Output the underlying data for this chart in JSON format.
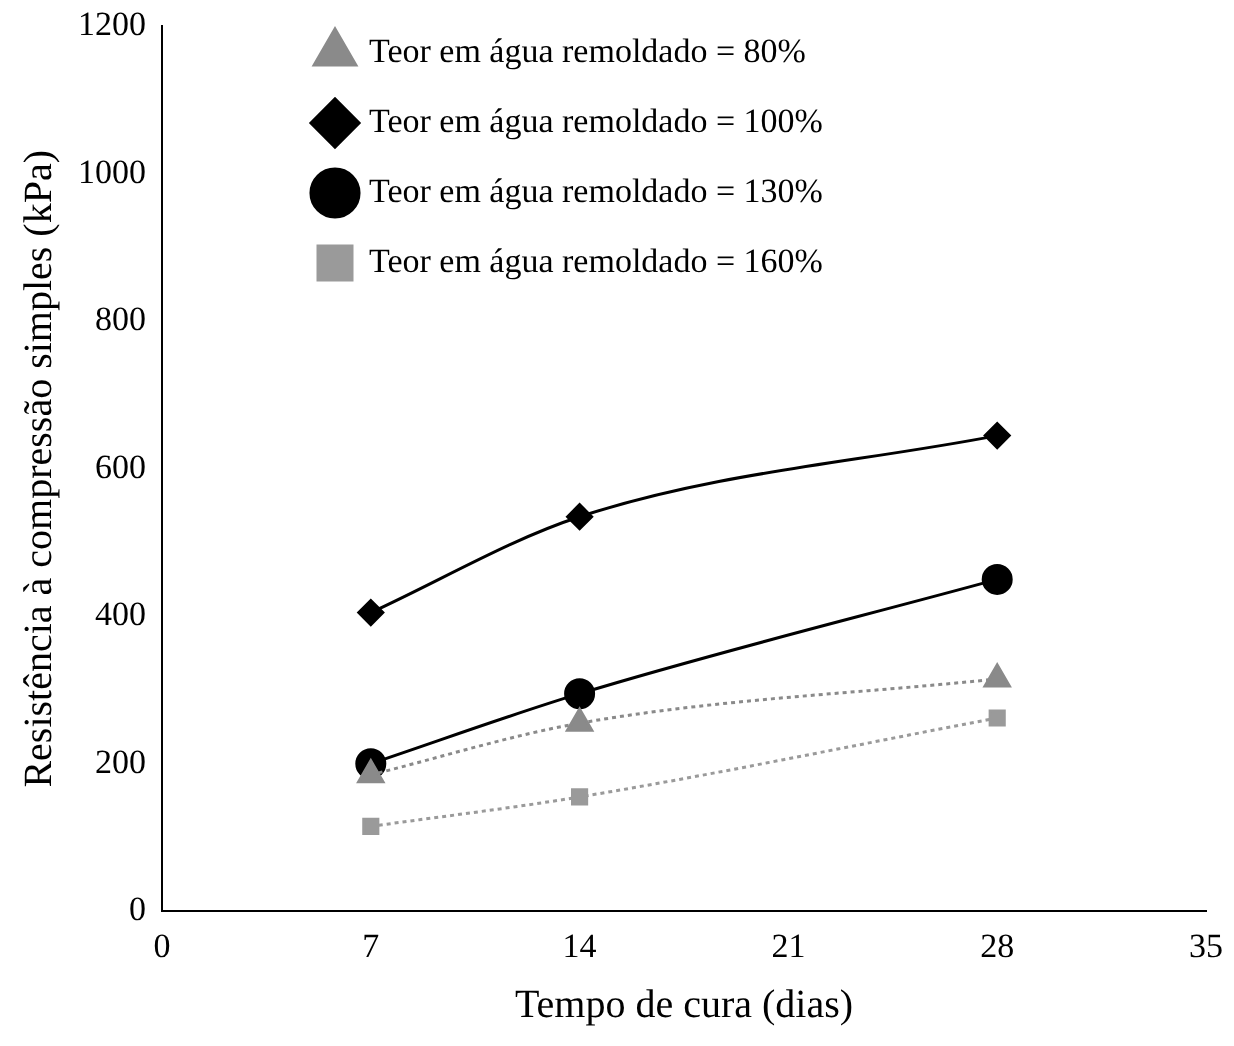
{
  "chart_data": {
    "type": "line",
    "xlabel": "Tempo de cura (dias)",
    "ylabel": "Resistência à compressão simples (kPa)",
    "x": [
      7,
      14,
      28
    ],
    "series": [
      {
        "name": "Teor em água remoldado = 80%",
        "color": "#8a8a8a",
        "values": [
          185,
          255,
          315
        ],
        "marker": "triangle",
        "line_style": "dotted"
      },
      {
        "name": "Teor em água remoldado = 100%",
        "color": "#000000",
        "values": [
          405,
          535,
          645
        ],
        "marker": "diamond",
        "line_style": "solid"
      },
      {
        "name": "Teor em água remoldado = 130%",
        "color": "#000000",
        "values": [
          200,
          295,
          450
        ],
        "marker": "circle",
        "line_style": "solid"
      },
      {
        "name": "Teor em água remoldado = 160%",
        "color": "#9a9a9a",
        "values": [
          115,
          155,
          262
        ],
        "marker": "square",
        "line_style": "dotted"
      }
    ],
    "xlim": [
      0,
      35
    ],
    "xticks": [
      0,
      7,
      14,
      21,
      28,
      35
    ],
    "ylim": [
      0,
      1200
    ],
    "yticks": [
      0,
      200,
      400,
      600,
      800,
      1000,
      1200
    ],
    "grid": false,
    "legend": "top left"
  }
}
